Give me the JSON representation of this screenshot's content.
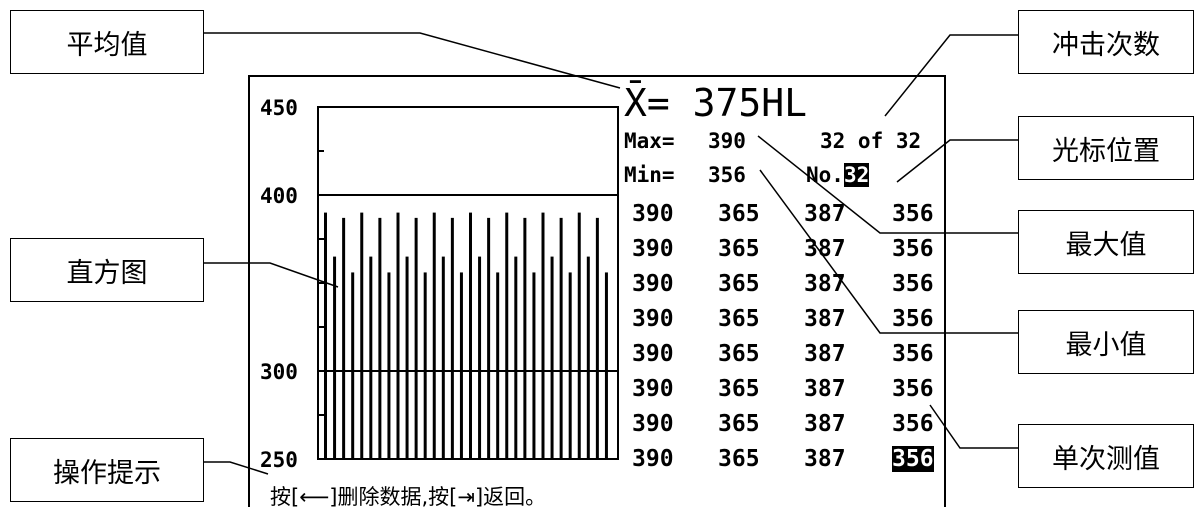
{
  "callouts": {
    "average": "平均值",
    "histogram": "直方图",
    "operation_hint": "操作提示",
    "impact_count": "冲击次数",
    "cursor_position": "光标位置",
    "max_value": "最大值",
    "min_value": "最小值",
    "single_value": "单次测值"
  },
  "screen": {
    "average_label": "X̄=",
    "average_value": "375HL",
    "max_label": "Max=",
    "max_value": "390",
    "min_label": "Min=",
    "min_value": "356",
    "count_text": "32 of 32",
    "cursor_label": "No.",
    "cursor_value": "32",
    "readings": [
      [
        "390",
        "365",
        "387",
        "356"
      ],
      [
        "390",
        "365",
        "387",
        "356"
      ],
      [
        "390",
        "365",
        "387",
        "356"
      ],
      [
        "390",
        "365",
        "387",
        "356"
      ],
      [
        "390",
        "365",
        "387",
        "356"
      ],
      [
        "390",
        "365",
        "387",
        "356"
      ],
      [
        "390",
        "365",
        "387",
        "356"
      ],
      [
        "390",
        "365",
        "387",
        "356"
      ]
    ],
    "hint_text": "按[⟵]删除数据,按[⇥]返回。"
  },
  "chart_data": {
    "type": "bar",
    "ylim": [
      250,
      450
    ],
    "yticks": [
      "450",
      "400",
      "300",
      "250"
    ],
    "reference_lines": [
      400,
      300
    ],
    "values": [
      390,
      365,
      387,
      356,
      390,
      365,
      387,
      356,
      390,
      365,
      387,
      356,
      390,
      365,
      387,
      356,
      390,
      365,
      387,
      356,
      390,
      365,
      387,
      356,
      390,
      365,
      387,
      356,
      390,
      365,
      387,
      356
    ]
  }
}
